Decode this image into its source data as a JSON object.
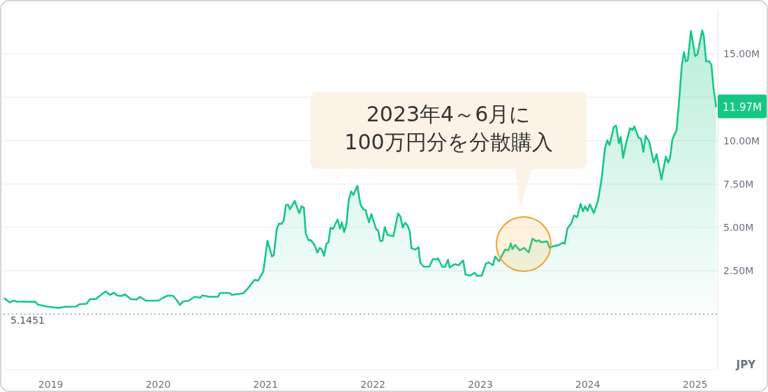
{
  "chart_data": {
    "type": "area",
    "color": "#16c784",
    "x": [
      2018.571,
      2018.619,
      2018.651,
      2018.695,
      2018.749,
      2018.781,
      2018.857,
      2018.879,
      2018.966,
      2019.073,
      2019.138,
      2019.236,
      2019.268,
      2019.333,
      2019.366,
      2019.42,
      2019.474,
      2019.511,
      2019.55,
      2019.593,
      2019.615,
      2019.658,
      2019.69,
      2019.745,
      2019.799,
      2019.831,
      2019.885,
      2019.961,
      2020.005,
      2020.047,
      2020.091,
      2020.138,
      2020.177,
      2020.203,
      2020.232,
      2020.286,
      2020.34,
      2020.394,
      2020.411,
      2020.481,
      2020.556,
      2020.578,
      2020.664,
      2020.686,
      2020.719,
      2020.794,
      2020.838,
      2020.87,
      2020.896,
      2020.931,
      2020.979,
      2021.018,
      2021.06,
      2021.076,
      2021.104,
      2021.125,
      2021.147,
      2021.169,
      2021.19,
      2021.212,
      2021.227,
      2021.271,
      2021.314,
      2021.336,
      2021.357,
      2021.375,
      2021.401,
      2021.422,
      2021.455,
      2021.482,
      2021.505,
      2021.524,
      2021.545,
      2021.567,
      2021.584,
      2021.606,
      2021.628,
      2021.671,
      2021.693,
      2021.71,
      2021.732,
      2021.753,
      2021.775,
      2021.797,
      2021.818,
      2021.855,
      2021.883,
      2021.909,
      2021.931,
      2021.963,
      2021.985,
      2022.028,
      2022.05,
      2022.067,
      2022.089,
      2022.11,
      2022.136,
      2022.19,
      2022.234,
      2022.255,
      2022.277,
      2022.299,
      2022.32,
      2022.342,
      2022.359,
      2022.396,
      2022.424,
      2022.44,
      2022.472,
      2022.526,
      2022.558,
      2022.591,
      2022.606,
      2022.645,
      2022.671,
      2022.699,
      2022.714,
      2022.764,
      2022.797,
      2022.84,
      2022.862,
      2022.905,
      2022.948,
      2022.969,
      2023.013,
      2023.052,
      2023.078,
      2023.117,
      2023.138,
      2023.175,
      2023.229,
      2023.262,
      2023.284,
      2023.299,
      2023.323,
      2023.366,
      2023.407,
      2023.45,
      2023.485,
      2023.521,
      2023.544,
      2023.565,
      2023.623,
      2023.645,
      2023.673,
      2023.727,
      2023.771,
      2023.786,
      2023.81,
      2023.846,
      2023.872,
      2023.901,
      2023.933,
      2023.955,
      2023.976,
      2023.998,
      2024.019,
      2024.056,
      2024.095,
      2024.128,
      2024.16,
      2024.182,
      2024.203,
      2024.242,
      2024.264,
      2024.29,
      2024.307,
      2024.329,
      2024.355,
      2024.394,
      2024.416,
      2024.433,
      2024.474,
      2024.496,
      2024.518,
      2024.539,
      2024.571,
      2024.615,
      2024.641,
      2024.686,
      2024.727,
      2024.749,
      2024.766,
      2024.788,
      2024.827,
      2024.853,
      2024.875,
      2024.896,
      2024.914,
      2024.931,
      2024.961,
      2025.0,
      2025.021,
      2025.065,
      2025.08,
      2025.102,
      2025.13,
      2025.151,
      2025.171,
      2025.195
    ],
    "values": [
      0.91,
      0.67,
      0.78,
      0.71,
      0.73,
      0.71,
      0.72,
      0.55,
      0.44,
      0.36,
      0.43,
      0.44,
      0.57,
      0.6,
      0.87,
      0.87,
      1.14,
      1.31,
      1.11,
      1.24,
      1.08,
      1.04,
      1.14,
      0.87,
      0.84,
      1.0,
      0.78,
      0.78,
      0.78,
      0.95,
      1.07,
      1.06,
      0.78,
      0.53,
      0.73,
      0.78,
      1.0,
      0.95,
      1.08,
      1.0,
      1.0,
      1.22,
      1.22,
      1.11,
      1.14,
      1.2,
      1.51,
      1.76,
      1.97,
      1.94,
      2.45,
      4.22,
      3.32,
      3.39,
      4.89,
      5.22,
      5.19,
      5.39,
      6.29,
      6.29,
      6.04,
      6.53,
      5.82,
      6.22,
      6.13,
      4.62,
      4.26,
      4.26,
      3.99,
      3.55,
      3.82,
      3.72,
      3.36,
      4.08,
      4.12,
      4.99,
      4.91,
      5.46,
      4.93,
      5.29,
      4.73,
      5.19,
      6.6,
      7.07,
      6.87,
      7.4,
      6.33,
      6.06,
      6.0,
      5.29,
      5.77,
      4.93,
      4.79,
      4.22,
      4.23,
      5.02,
      4.57,
      4.49,
      5.8,
      5.63,
      4.99,
      5.26,
      5.13,
      4.79,
      3.79,
      3.72,
      3.86,
      2.98,
      2.74,
      2.74,
      3.18,
      3.14,
      3.22,
      2.74,
      2.72,
      3.14,
      2.69,
      2.88,
      2.82,
      3.09,
      2.28,
      2.22,
      2.38,
      2.21,
      2.22,
      2.92,
      2.98,
      2.82,
      3.32,
      3.05,
      3.72,
      3.69,
      4.08,
      3.75,
      3.99,
      3.68,
      3.82,
      3.56,
      4.35,
      4.19,
      4.26,
      4.15,
      4.19,
      3.82,
      3.9,
      3.98,
      4.12,
      4.06,
      4.93,
      5.23,
      5.69,
      5.59,
      6.36,
      5.93,
      6.22,
      5.96,
      6.33,
      5.82,
      6.53,
      7.76,
      9.55,
      10.01,
      9.75,
      10.78,
      10.86,
      9.84,
      10.21,
      9.01,
      9.81,
      10.72,
      10.61,
      10.82,
      10.15,
      10.11,
      9.35,
      10.28,
      9.95,
      8.74,
      9.21,
      7.76,
      9.08,
      8.74,
      9.01,
      10.08,
      10.61,
      12.49,
      14.3,
      15.1,
      14.57,
      14.63,
      16.31,
      14.87,
      14.97,
      16.35,
      16.04,
      14.57,
      14.57,
      14.37,
      13.02,
      11.97
    ],
    "value_labels": [
      null,
      null,
      null,
      null,
      null,
      null,
      null,
      null,
      null,
      null,
      null,
      null,
      null,
      null,
      null,
      null,
      null,
      null,
      null,
      null,
      null,
      null,
      null,
      null,
      null,
      null,
      null,
      null,
      null,
      null,
      null,
      null,
      null,
      null,
      null,
      null,
      null,
      null,
      null,
      null,
      null,
      null,
      null,
      null,
      null,
      null,
      null,
      null,
      null,
      null,
      null,
      null,
      null,
      null,
      null,
      null,
      null,
      null,
      null,
      null,
      null,
      null,
      null,
      null,
      null,
      null,
      null,
      null,
      null,
      null,
      null,
      null,
      null,
      null,
      null,
      null,
      null,
      null,
      null,
      null,
      null,
      null,
      null,
      null,
      null,
      null,
      null,
      null,
      null,
      null,
      null,
      null,
      null,
      null,
      null,
      null,
      null,
      null,
      null,
      null,
      null,
      null,
      null,
      null,
      null,
      null,
      null,
      null,
      null,
      null,
      null,
      null,
      null,
      null,
      null,
      null,
      null,
      null,
      null,
      null,
      null,
      null,
      null,
      null,
      null,
      null,
      null,
      null,
      null,
      null,
      null,
      null,
      null,
      null,
      null,
      null,
      null,
      null,
      null,
      null,
      null,
      null,
      null,
      null,
      null,
      null,
      null,
      null,
      null,
      null,
      null,
      null,
      null,
      null,
      null,
      null,
      null,
      null,
      null,
      null,
      null,
      null,
      null,
      null,
      null,
      null,
      null,
      null,
      null,
      null,
      null,
      null,
      null,
      null,
      null,
      null,
      null,
      null,
      null,
      null,
      null,
      null,
      null,
      null,
      null,
      null,
      null,
      null,
      null,
      null,
      null,
      null,
      null,
      null,
      null,
      null,
      null,
      null,
      null,
      "11.97M"
    ],
    "xlim": [
      2018.56,
      2025.21
    ],
    "ylim": [
      -3.2,
      17.5
    ],
    "xticks": [
      2019,
      2020,
      2021,
      2022,
      2023,
      2024,
      2025
    ],
    "yticks": [
      {
        "value": 2.5,
        "label": "2.50M"
      },
      {
        "value": 5,
        "label": "5.00M"
      },
      {
        "value": 7.5,
        "label": "7.50M"
      },
      {
        "value": 10,
        "label": "10.00M"
      },
      {
        "value": 12.5,
        "label": null
      },
      {
        "value": 15,
        "label": "15.00M"
      }
    ],
    "ylabel": "JPY",
    "grid": "y",
    "ref_lines": [
      {
        "axis": "y",
        "value": 0,
        "line_style": "dotted"
      }
    ],
    "annotations": [
      "2023年4～6月に\n100万円分を分散購入",
      "5.1451"
    ]
  }
}
